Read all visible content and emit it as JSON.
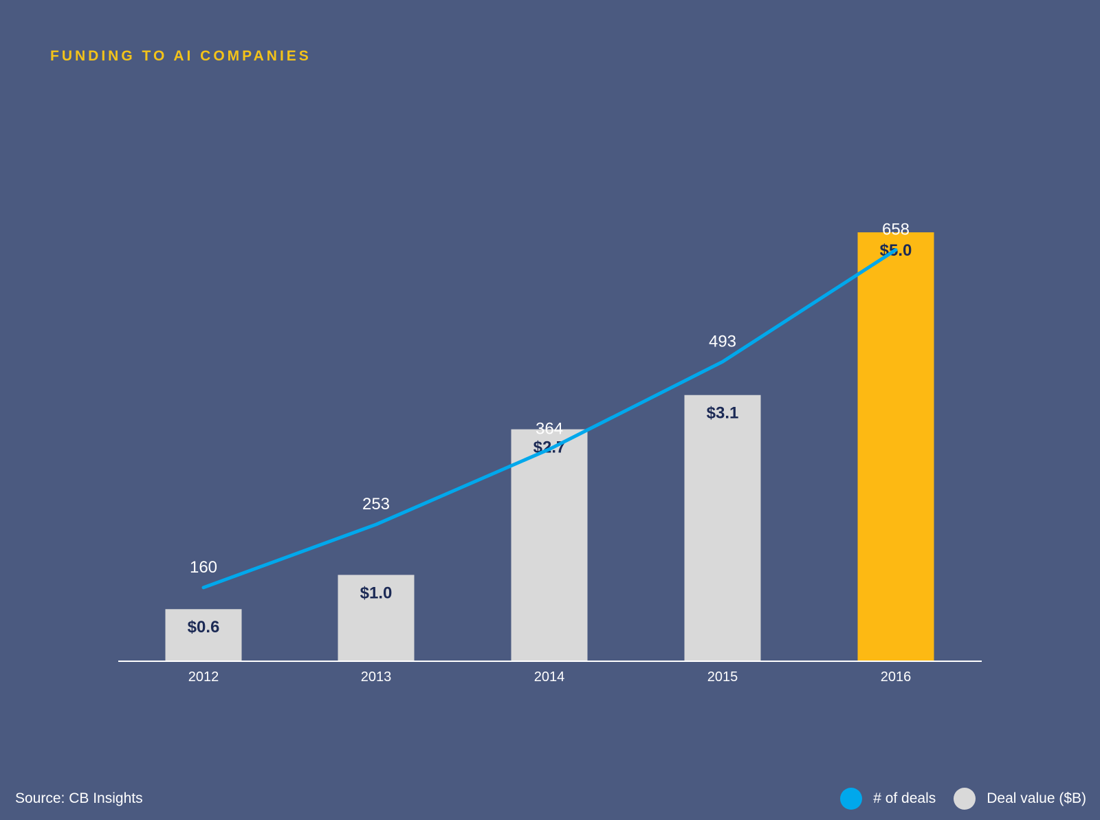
{
  "title": "FUNDING TO AI COMPANIES",
  "source": "Source: CB Insights",
  "legend": {
    "deals_label": "# of deals",
    "value_label": "Deal value ($B)"
  },
  "colors": {
    "background": "#4b5a80",
    "title": "#f3c319",
    "bar": "#d9d9d9",
    "highlight_bar": "#fdb913",
    "line": "#00a8ec",
    "bar_label": "#1c2a55",
    "axis": "#ffffff"
  },
  "chart_data": {
    "type": "bar",
    "categories": [
      "2012",
      "2013",
      "2014",
      "2015",
      "2016"
    ],
    "series": [
      {
        "name": "Deal value ($B)",
        "type": "bar",
        "values": [
          0.6,
          1.0,
          2.7,
          3.1,
          5.0
        ],
        "labels": [
          "$0.6",
          "$1.0",
          "$2.7",
          "$3.1",
          "$5.0"
        ],
        "highlight_index": 4
      },
      {
        "name": "# of deals",
        "type": "line",
        "values": [
          160,
          253,
          364,
          493,
          658
        ],
        "labels": [
          "160",
          "253",
          "364",
          "493",
          "658"
        ]
      }
    ],
    "title": "FUNDING TO AI COMPANIES",
    "xlabel": "",
    "ylabel": "",
    "grid": false,
    "legend_position": "bottom-right"
  }
}
